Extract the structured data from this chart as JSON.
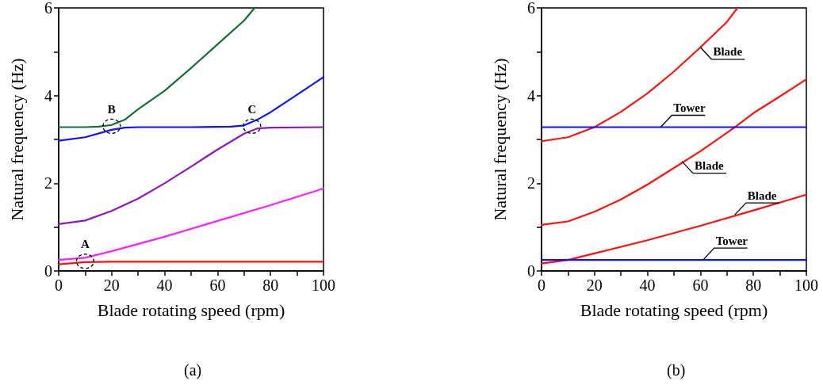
{
  "chart_data": [
    {
      "type": "line",
      "title": "(a)",
      "xlabel": "Blade rotating speed (rpm)",
      "ylabel": "Natural frequency (Hz)",
      "xlim": [
        0,
        100
      ],
      "ylim": [
        0,
        6
      ],
      "xticks": [
        0,
        {
          "value": 10,
          "label": null
        },
        20,
        {
          "value": 30,
          "label": null
        },
        40,
        {
          "value": 50,
          "label": null
        },
        60,
        {
          "value": 70,
          "label": null
        },
        80,
        {
          "value": 90,
          "label": null
        },
        100
      ],
      "yticks": [
        0,
        {
          "value": 1,
          "label": null
        },
        2,
        {
          "value": 3,
          "label": null
        },
        4,
        {
          "value": 5,
          "label": null
        },
        6
      ],
      "grid": false,
      "marker": "none",
      "line_style": "solid",
      "series": [
        {
          "color": "#1a6b3a",
          "x": [
            0,
            10,
            15,
            20,
            25,
            30,
            40,
            50,
            60,
            70,
            74
          ],
          "values": [
            3.28,
            3.28,
            3.29,
            3.33,
            3.45,
            3.69,
            4.11,
            4.63,
            5.17,
            5.71,
            6.0
          ]
        },
        {
          "color": "#1010ff",
          "x": [
            0,
            10,
            20,
            25,
            30,
            50,
            65,
            70,
            75,
            80,
            90,
            100
          ],
          "values": [
            2.97,
            3.05,
            3.22,
            3.27,
            3.28,
            3.28,
            3.29,
            3.32,
            3.45,
            3.62,
            4.02,
            4.42
          ]
        },
        {
          "color": "#8a1ab5",
          "x": [
            0,
            10,
            20,
            30,
            40,
            50,
            60,
            70,
            75,
            80,
            100
          ],
          "values": [
            1.07,
            1.15,
            1.37,
            1.65,
            2.0,
            2.38,
            2.77,
            3.13,
            3.25,
            3.27,
            3.28
          ]
        },
        {
          "color": "#ff20ff",
          "x": [
            0,
            10,
            20,
            40,
            60,
            80,
            100
          ],
          "values": [
            0.25,
            0.3,
            0.45,
            0.78,
            1.14,
            1.5,
            1.88
          ]
        },
        {
          "color": "#ff1010",
          "x": [
            0,
            10,
            20,
            100
          ],
          "values": [
            0.15,
            0.2,
            0.21,
            0.21
          ]
        }
      ],
      "annotations": [
        {
          "text": "A",
          "x": 10,
          "y": 0.22
        },
        {
          "text": "B",
          "x": 20,
          "y": 3.3
        },
        {
          "text": "C",
          "x": 73,
          "y": 3.3
        }
      ]
    },
    {
      "type": "line",
      "title": "(b)",
      "xlabel": "Blade rotating speed (rpm)",
      "ylabel": "Natural frequency (Hz)",
      "xlim": [
        0,
        100
      ],
      "ylim": [
        0,
        6
      ],
      "xticks": [
        0,
        {
          "value": 10,
          "label": null
        },
        20,
        {
          "value": 30,
          "label": null
        },
        40,
        {
          "value": 50,
          "label": null
        },
        60,
        {
          "value": 70,
          "label": null
        },
        80,
        {
          "value": 90,
          "label": null
        },
        100
      ],
      "yticks": [
        0,
        {
          "value": 1,
          "label": null
        },
        2,
        {
          "value": 3,
          "label": null
        },
        4,
        {
          "value": 5,
          "label": null
        },
        6
      ],
      "grid": false,
      "marker": "none",
      "line_style": "solid",
      "series": [
        {
          "color": "#ff1010",
          "x": [
            0,
            10,
            20,
            30,
            40,
            50,
            60,
            70,
            74
          ],
          "values": [
            2.96,
            3.05,
            3.28,
            3.63,
            4.05,
            4.55,
            5.1,
            5.68,
            6.0
          ]
        },
        {
          "color": "#ff1010",
          "x": [
            0,
            10,
            20,
            30,
            40,
            50,
            60,
            70,
            73,
            80,
            90,
            100
          ],
          "values": [
            1.05,
            1.13,
            1.35,
            1.63,
            1.97,
            2.35,
            2.73,
            3.15,
            3.28,
            3.6,
            3.98,
            4.37
          ]
        },
        {
          "color": "#ff1010",
          "x": [
            0,
            10,
            20,
            40,
            60,
            80,
            100
          ],
          "values": [
            0.17,
            0.25,
            0.4,
            0.7,
            1.03,
            1.38,
            1.74
          ]
        },
        {
          "color": "#1010ff",
          "x": [
            0,
            100
          ],
          "values": [
            3.28,
            3.28
          ]
        },
        {
          "color": "#1010ff",
          "x": [
            0,
            100
          ],
          "values": [
            0.25,
            0.25
          ]
        }
      ],
      "annotations": [
        {
          "text": "Blade",
          "x": 60,
          "y": 5.1
        },
        {
          "text": "Tower",
          "x": 45,
          "y": 3.28
        },
        {
          "text": "Blade",
          "x": 53,
          "y": 2.5
        },
        {
          "text": "Blade",
          "x": 73,
          "y": 1.28
        },
        {
          "text": "Tower",
          "x": 61,
          "y": 0.25
        }
      ]
    }
  ]
}
